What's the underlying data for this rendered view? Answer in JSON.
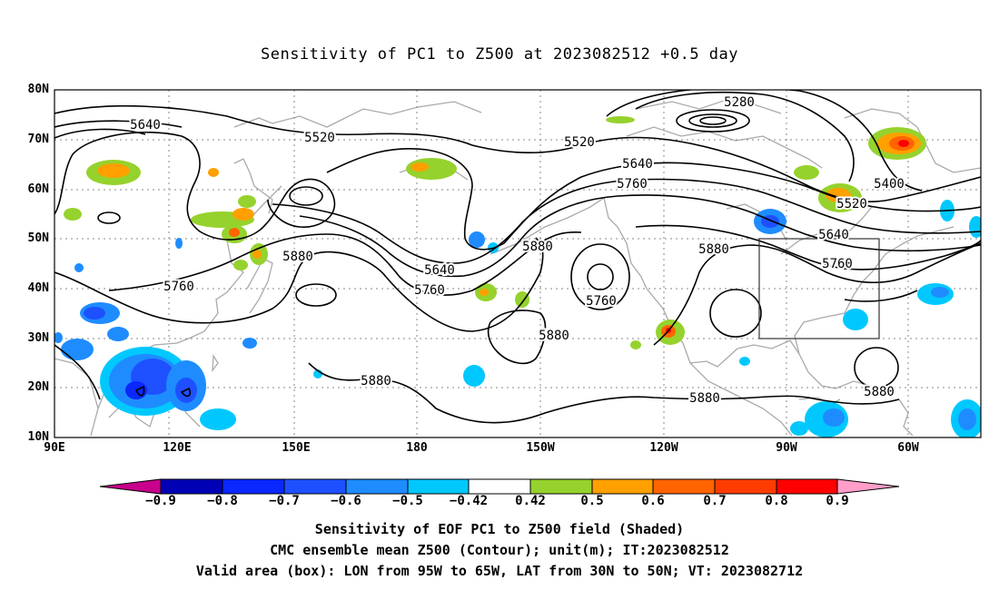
{
  "title": "Sensitivity of PC1 to Z500 at 2023082512 +0.5 day",
  "map": {
    "lat_ticks": [
      "80N",
      "70N",
      "60N",
      "50N",
      "40N",
      "30N",
      "20N",
      "10N"
    ],
    "lon_ticks": [
      "90E",
      "120E",
      "150E",
      "180",
      "150W",
      "120W",
      "90W",
      "60W"
    ],
    "box": {
      "lon_from": "95W",
      "lon_to": "65W",
      "lat_from": "30N",
      "lat_to": "50N"
    },
    "contour_labels": [
      "5280",
      "5400",
      "5520",
      "5520",
      "5520",
      "5640",
      "5640",
      "5640",
      "5640",
      "5760",
      "5760",
      "5760",
      "5760",
      "5760",
      "5880",
      "5880",
      "5880",
      "5880",
      "5880",
      "5880",
      "5880"
    ]
  },
  "colorbar": {
    "labels": [
      "-0.9",
      "-0.8",
      "-0.7",
      "-0.6",
      "-0.5",
      "-0.42",
      "0.42",
      "0.5",
      "0.6",
      "0.7",
      "0.8",
      "0.9"
    ],
    "colors": [
      "#0000b4",
      "#0a28ff",
      "#1e50ff",
      "#1e8cff",
      "#00c8ff",
      "#ffffff",
      "#96d22d",
      "#ffa000",
      "#ff6400",
      "#ff3c00",
      "#ff0000"
    ],
    "low_end_color": "#c8008c",
    "high_end_color": "#ff9ec8"
  },
  "captions": [
    "Sensitivity of EOF PC1 to Z500 field (Shaded)",
    "CMC ensemble mean Z500 (Contour); unit(m); IT:2023082512",
    "Valid area (box): LON from 95W to 65W, LAT from 30N to 50N; VT: 2023082712"
  ]
}
